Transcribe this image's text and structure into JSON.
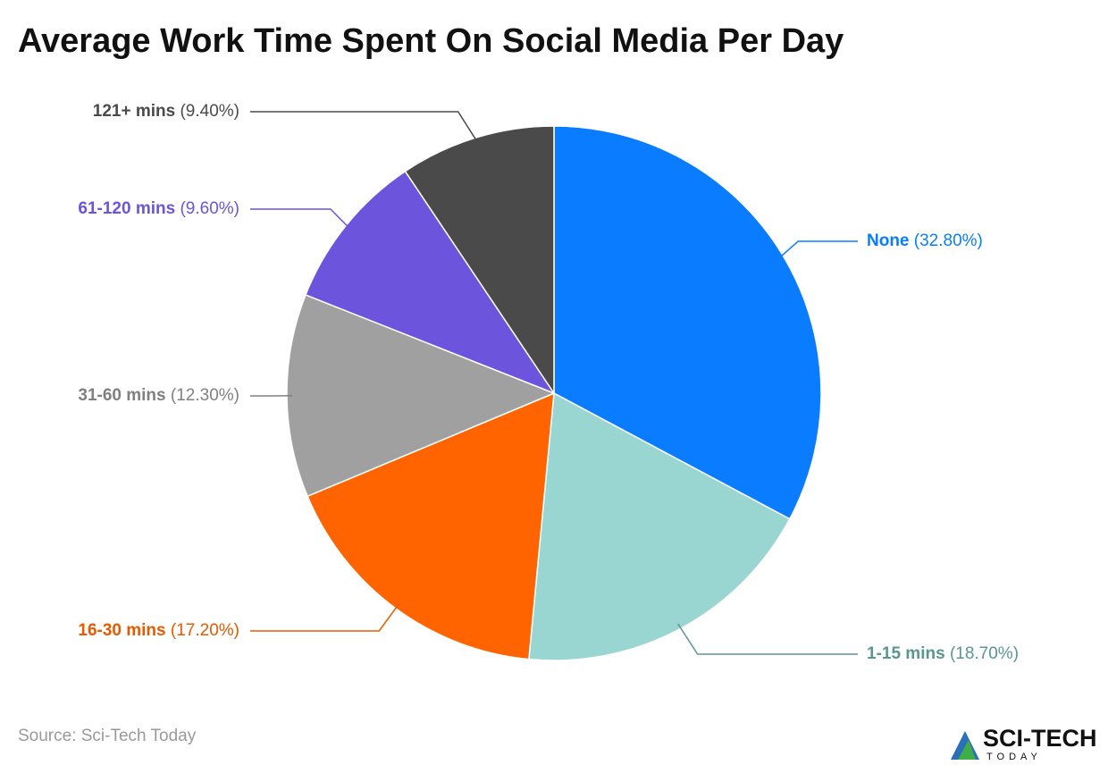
{
  "chart_data": {
    "type": "pie",
    "title": "Average Work Time Spent On Social Media Per Day",
    "categories": [
      "None",
      "1-15 mins",
      "16-30 mins",
      "31-60 mins",
      "61-120 mins",
      "121+ mins"
    ],
    "values": [
      32.8,
      18.7,
      17.2,
      12.3,
      9.6,
      9.4
    ],
    "value_labels": [
      "(32.80%)",
      "(18.70%)",
      "(17.20%)",
      "(12.30%)",
      "(9.60%)",
      "(9.40%)"
    ],
    "colors": [
      "#0a7cff",
      "#9ad6d1",
      "#ff6400",
      "#a0a0a0",
      "#6c54dc",
      "#4a4a4a"
    ],
    "label_colors": [
      "#0a7cff",
      "#5a9690",
      "#e65a00",
      "#808080",
      "#6c54dc",
      "#4a4a4a"
    ],
    "source": "Source: Sci-Tech Today",
    "logo": {
      "name": "SCI-TECH",
      "tagline": "TODAY"
    }
  }
}
